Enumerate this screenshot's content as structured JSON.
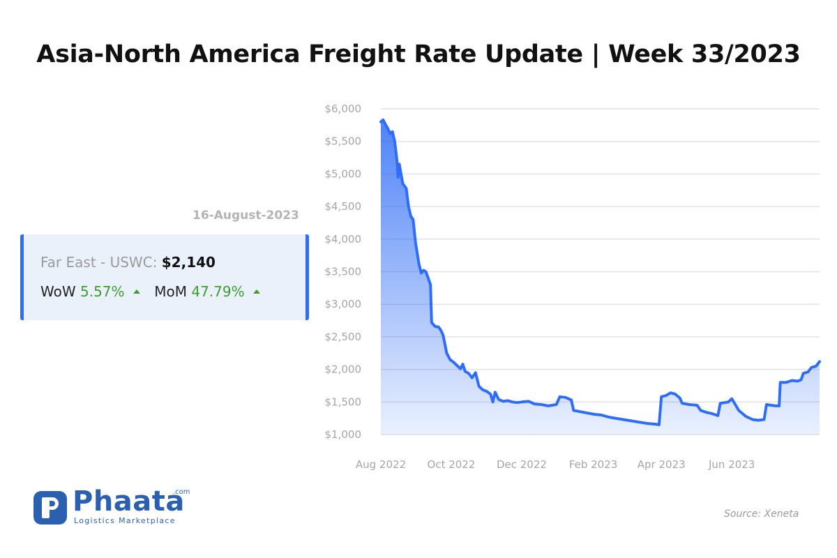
{
  "title": "Asia-North America Freight Rate Update | Week 33/2023",
  "summary": {
    "date": "16-August-2023",
    "route_label": "Far East - USWC:",
    "rate": "$2,140",
    "wow_label": "WoW",
    "wow_value": "5.57%",
    "mom_label": "MoM",
    "mom_value": "47.79%"
  },
  "logo": {
    "name": "Phaata",
    "tld": ".com",
    "tagline": "Logistics Marketplace"
  },
  "source": "Source: Xeneta",
  "colors": {
    "line": "#2f6df6",
    "accent_green": "#3b9e2e",
    "card_bg": "#ebf1fb",
    "brand": "#2b5fb0"
  },
  "chart_data": {
    "type": "area",
    "title": "",
    "xlabel": "",
    "ylabel": "",
    "ylim": [
      1000,
      6000
    ],
    "y_ticks": [
      {
        "value": 6000,
        "label": "$6,000"
      },
      {
        "value": 5500,
        "label": "$5,500"
      },
      {
        "value": 5000,
        "label": "$5,000"
      },
      {
        "value": 4500,
        "label": "$4,500"
      },
      {
        "value": 4000,
        "label": "$4,000"
      },
      {
        "value": 3500,
        "label": "$3,500"
      },
      {
        "value": 3000,
        "label": "$3,000"
      },
      {
        "value": 2500,
        "label": "$2,500"
      },
      {
        "value": 2000,
        "label": "$2,000"
      },
      {
        "value": 1500,
        "label": "$1,500"
      },
      {
        "value": 1000,
        "label": "$1,000"
      }
    ],
    "x_ticks": [
      {
        "value": "2022-08-01",
        "label": "Aug 2022"
      },
      {
        "value": "2022-10-01",
        "label": "Oct 2022"
      },
      {
        "value": "2022-12-01",
        "label": "Dec 2022"
      },
      {
        "value": "2023-02-01",
        "label": "Feb 2023"
      },
      {
        "value": "2023-04-01",
        "label": "Apr 2023"
      },
      {
        "value": "2023-06-01",
        "label": "Jun 2023"
      }
    ],
    "x_range": [
      "2022-08-01",
      "2023-08-16"
    ],
    "grid": true,
    "series": [
      {
        "points": [
          [
            "2022-08-01",
            5800
          ],
          [
            "2022-08-03",
            5830
          ],
          [
            "2022-08-05",
            5760
          ],
          [
            "2022-08-07",
            5700
          ],
          [
            "2022-08-09",
            5620
          ],
          [
            "2022-08-11",
            5650
          ],
          [
            "2022-08-13",
            5500
          ],
          [
            "2022-08-15",
            5200
          ],
          [
            "2022-08-16",
            4950
          ],
          [
            "2022-08-17",
            5150
          ],
          [
            "2022-08-18",
            5050
          ],
          [
            "2022-08-20",
            4850
          ],
          [
            "2022-08-23",
            4780
          ],
          [
            "2022-08-25",
            4500
          ],
          [
            "2022-08-27",
            4350
          ],
          [
            "2022-08-29",
            4300
          ],
          [
            "2022-08-31",
            3950
          ],
          [
            "2022-09-03",
            3620
          ],
          [
            "2022-09-05",
            3480
          ],
          [
            "2022-09-07",
            3520
          ],
          [
            "2022-09-09",
            3500
          ],
          [
            "2022-09-11",
            3400
          ],
          [
            "2022-09-13",
            3300
          ],
          [
            "2022-09-14",
            2720
          ],
          [
            "2022-09-17",
            2660
          ],
          [
            "2022-09-20",
            2650
          ],
          [
            "2022-09-22",
            2600
          ],
          [
            "2022-09-24",
            2520
          ],
          [
            "2022-09-27",
            2250
          ],
          [
            "2022-09-30",
            2150
          ],
          [
            "2022-10-03",
            2110
          ],
          [
            "2022-10-06",
            2060
          ],
          [
            "2022-10-09",
            2010
          ],
          [
            "2022-10-11",
            2080
          ],
          [
            "2022-10-13",
            1970
          ],
          [
            "2022-10-16",
            1940
          ],
          [
            "2022-10-19",
            1870
          ],
          [
            "2022-10-22",
            1950
          ],
          [
            "2022-10-25",
            1740
          ],
          [
            "2022-10-28",
            1690
          ],
          [
            "2022-11-01",
            1660
          ],
          [
            "2022-11-04",
            1620
          ],
          [
            "2022-11-06",
            1500
          ],
          [
            "2022-11-08",
            1650
          ],
          [
            "2022-11-11",
            1540
          ],
          [
            "2022-11-15",
            1510
          ],
          [
            "2022-11-19",
            1520
          ],
          [
            "2022-11-23",
            1500
          ],
          [
            "2022-11-27",
            1490
          ],
          [
            "2022-12-01",
            1500
          ],
          [
            "2022-12-07",
            1510
          ],
          [
            "2022-12-12",
            1470
          ],
          [
            "2022-12-18",
            1460
          ],
          [
            "2022-12-24",
            1440
          ],
          [
            "2022-12-31",
            1460
          ],
          [
            "2023-01-03",
            1580
          ],
          [
            "2023-01-08",
            1570
          ],
          [
            "2023-01-13",
            1530
          ],
          [
            "2023-01-15",
            1370
          ],
          [
            "2023-01-21",
            1350
          ],
          [
            "2023-01-27",
            1330
          ],
          [
            "2023-02-02",
            1310
          ],
          [
            "2023-02-08",
            1300
          ],
          [
            "2023-02-14",
            1270
          ],
          [
            "2023-02-20",
            1250
          ],
          [
            "2023-02-27",
            1230
          ],
          [
            "2023-03-06",
            1210
          ],
          [
            "2023-03-13",
            1190
          ],
          [
            "2023-03-20",
            1170
          ],
          [
            "2023-03-27",
            1160
          ],
          [
            "2023-03-30",
            1150
          ],
          [
            "2023-04-01",
            1580
          ],
          [
            "2023-04-05",
            1600
          ],
          [
            "2023-04-09",
            1640
          ],
          [
            "2023-04-13",
            1620
          ],
          [
            "2023-04-17",
            1560
          ],
          [
            "2023-04-19",
            1480
          ],
          [
            "2023-04-25",
            1460
          ],
          [
            "2023-05-02",
            1450
          ],
          [
            "2023-05-05",
            1370
          ],
          [
            "2023-05-10",
            1340
          ],
          [
            "2023-05-15",
            1320
          ],
          [
            "2023-05-20",
            1290
          ],
          [
            "2023-05-22",
            1480
          ],
          [
            "2023-05-29",
            1500
          ],
          [
            "2023-06-01",
            1550
          ],
          [
            "2023-06-04",
            1460
          ],
          [
            "2023-06-07",
            1370
          ],
          [
            "2023-06-13",
            1280
          ],
          [
            "2023-06-19",
            1230
          ],
          [
            "2023-06-24",
            1220
          ],
          [
            "2023-06-29",
            1230
          ],
          [
            "2023-07-01",
            1460
          ],
          [
            "2023-07-05",
            1450
          ],
          [
            "2023-07-09",
            1440
          ],
          [
            "2023-07-12",
            1440
          ],
          [
            "2023-07-13",
            1800
          ],
          [
            "2023-07-18",
            1800
          ],
          [
            "2023-07-23",
            1830
          ],
          [
            "2023-07-28",
            1820
          ],
          [
            "2023-07-31",
            1840
          ],
          [
            "2023-08-02",
            1940
          ],
          [
            "2023-08-06",
            1960
          ],
          [
            "2023-08-09",
            2030
          ],
          [
            "2023-08-13",
            2050
          ],
          [
            "2023-08-16",
            2120
          ]
        ]
      }
    ]
  }
}
